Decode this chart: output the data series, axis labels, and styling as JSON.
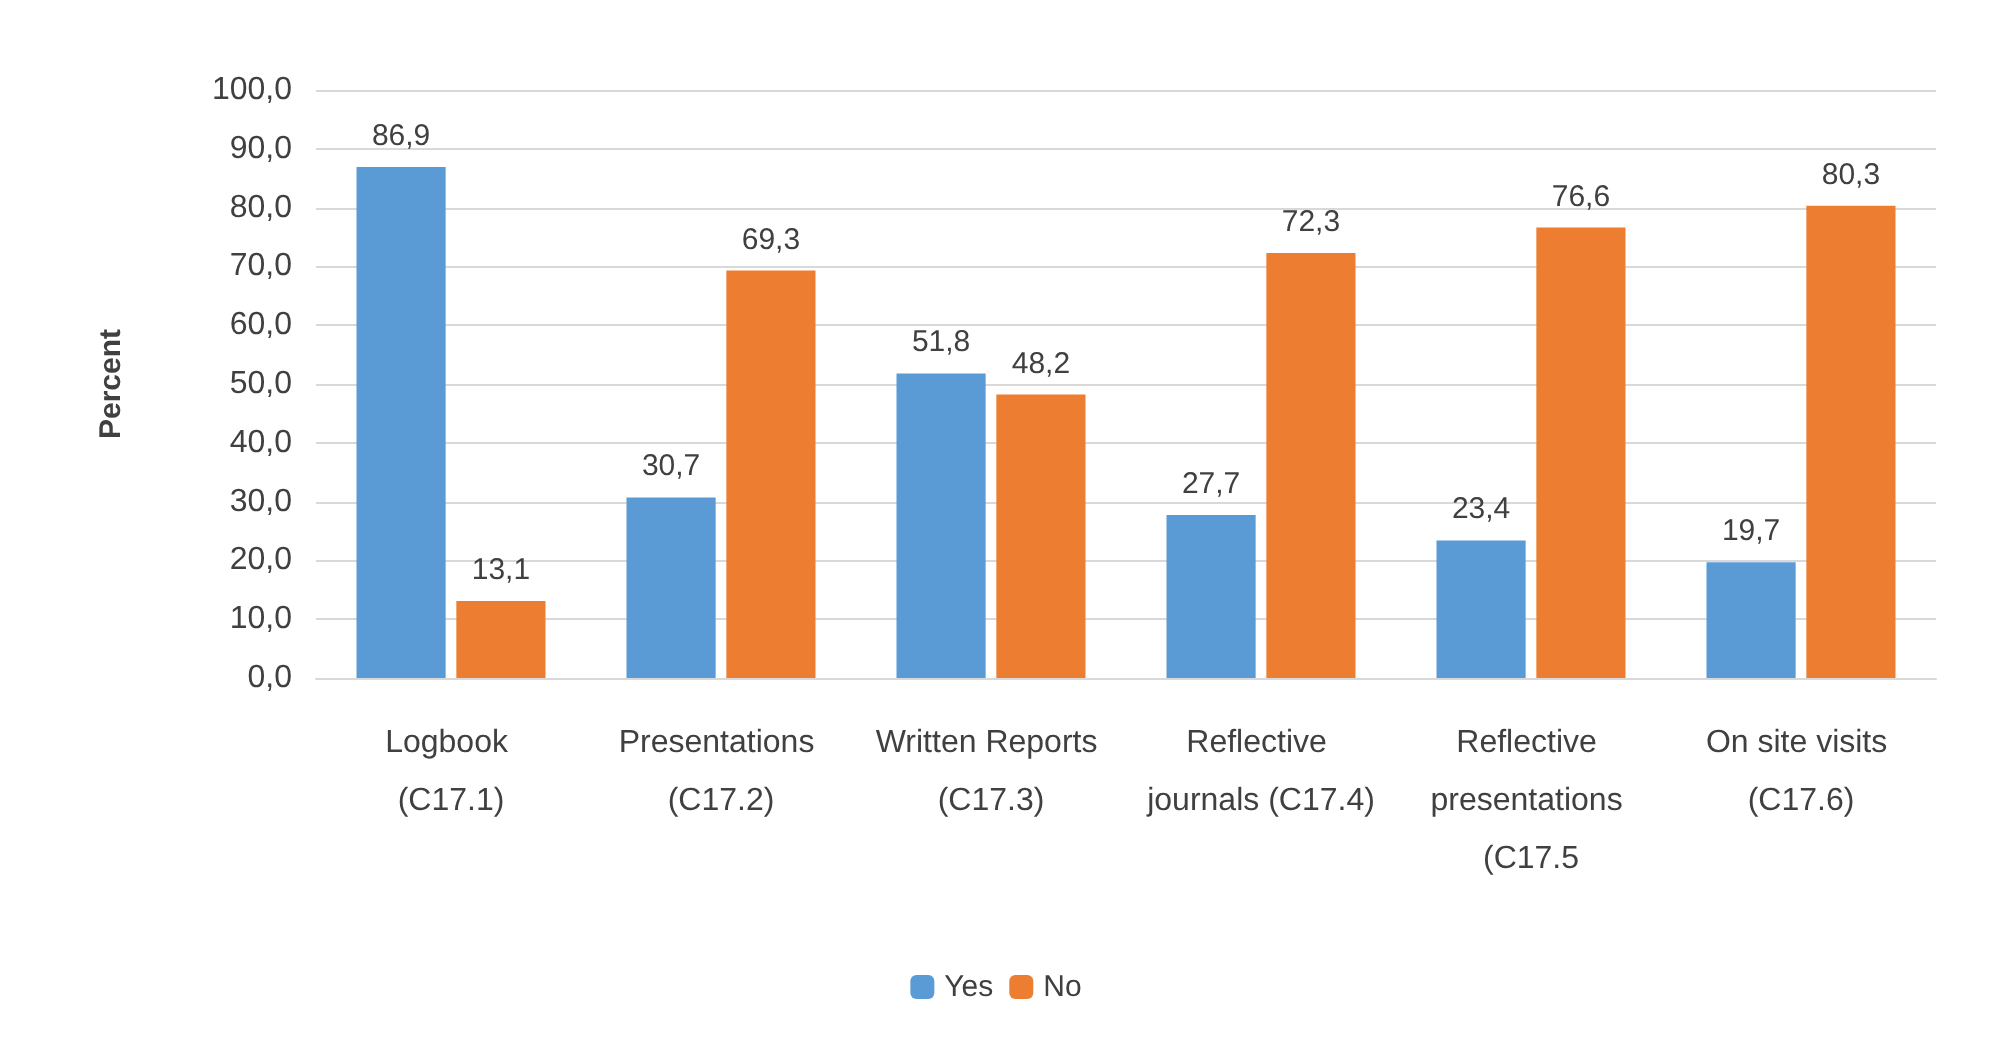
{
  "chart_data": {
    "type": "bar",
    "ylabel": "Percent",
    "categories": [
      "Logbook (C17.1)",
      "Presentations (C17.2)",
      "Written Reports (C17.3)",
      "Reflective journals (C17.4)",
      "Reflective presentations (C17.5",
      "On site visits (C17.6)"
    ],
    "series": [
      {
        "name": "Yes",
        "color": "#5b9bd5",
        "values": [
          86.9,
          30.7,
          51.8,
          27.7,
          23.4,
          19.7
        ],
        "value_labels": [
          "86,9",
          "30,7",
          "51,8",
          "27,7",
          "23,4",
          "19,7"
        ]
      },
      {
        "name": "No",
        "color": "#ed7d31",
        "values": [
          13.1,
          69.3,
          48.2,
          72.3,
          76.6,
          80.3
        ],
        "value_labels": [
          "13,1",
          "69,3",
          "48,2",
          "72,3",
          "76,6",
          "80,3"
        ]
      }
    ],
    "ylim": [
      0,
      100
    ],
    "yticks": [
      {
        "value": 0,
        "label": "0,0"
      },
      {
        "value": 10,
        "label": "10,0"
      },
      {
        "value": 20,
        "label": "20,0"
      },
      {
        "value": 30,
        "label": "30,0"
      },
      {
        "value": 40,
        "label": "40,0"
      },
      {
        "value": 50,
        "label": "50,0"
      },
      {
        "value": 60,
        "label": "60,0"
      },
      {
        "value": 70,
        "label": "70,0"
      },
      {
        "value": 80,
        "label": "80,0"
      },
      {
        "value": 90,
        "label": "90,0"
      },
      {
        "value": 100,
        "label": "100,0"
      }
    ],
    "grid": "y",
    "legend": "bottom"
  }
}
